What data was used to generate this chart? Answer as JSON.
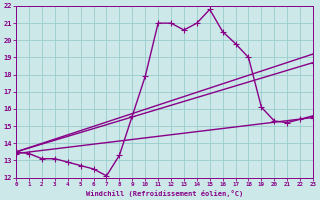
{
  "xlabel": "Windchill (Refroidissement éolien,°C)",
  "ylabel": "",
  "xlim": [
    0,
    23
  ],
  "ylim": [
    12,
    22
  ],
  "xticks": [
    0,
    1,
    2,
    3,
    4,
    5,
    6,
    7,
    8,
    9,
    10,
    11,
    12,
    13,
    14,
    15,
    16,
    17,
    18,
    19,
    20,
    21,
    22,
    23
  ],
  "yticks": [
    12,
    13,
    14,
    15,
    16,
    17,
    18,
    19,
    20,
    21,
    22
  ],
  "background_color": "#cce8e8",
  "grid_color": "#99cccc",
  "line_color": "#880088",
  "line_width": 1.0,
  "marker": "+",
  "marker_size": 4,
  "lines": [
    {
      "x": [
        0,
        1,
        2,
        3,
        4,
        5,
        6,
        7,
        8,
        9,
        10,
        11,
        12,
        13,
        14,
        15,
        16,
        17,
        18,
        19,
        20,
        21,
        22,
        23
      ],
      "y": [
        13.5,
        13.4,
        13.1,
        13.1,
        12.9,
        12.7,
        12.5,
        12.1,
        13.3,
        15.6,
        17.9,
        21.0,
        21.0,
        20.6,
        21.0,
        21.8,
        20.5,
        19.8,
        19.0,
        16.1,
        15.3,
        15.2,
        15.4,
        15.6
      ]
    },
    {
      "x": [
        0,
        23
      ],
      "y": [
        13.5,
        19.2
      ]
    },
    {
      "x": [
        0,
        23
      ],
      "y": [
        13.5,
        18.7
      ]
    },
    {
      "x": [
        0,
        23
      ],
      "y": [
        13.4,
        15.5
      ]
    }
  ]
}
